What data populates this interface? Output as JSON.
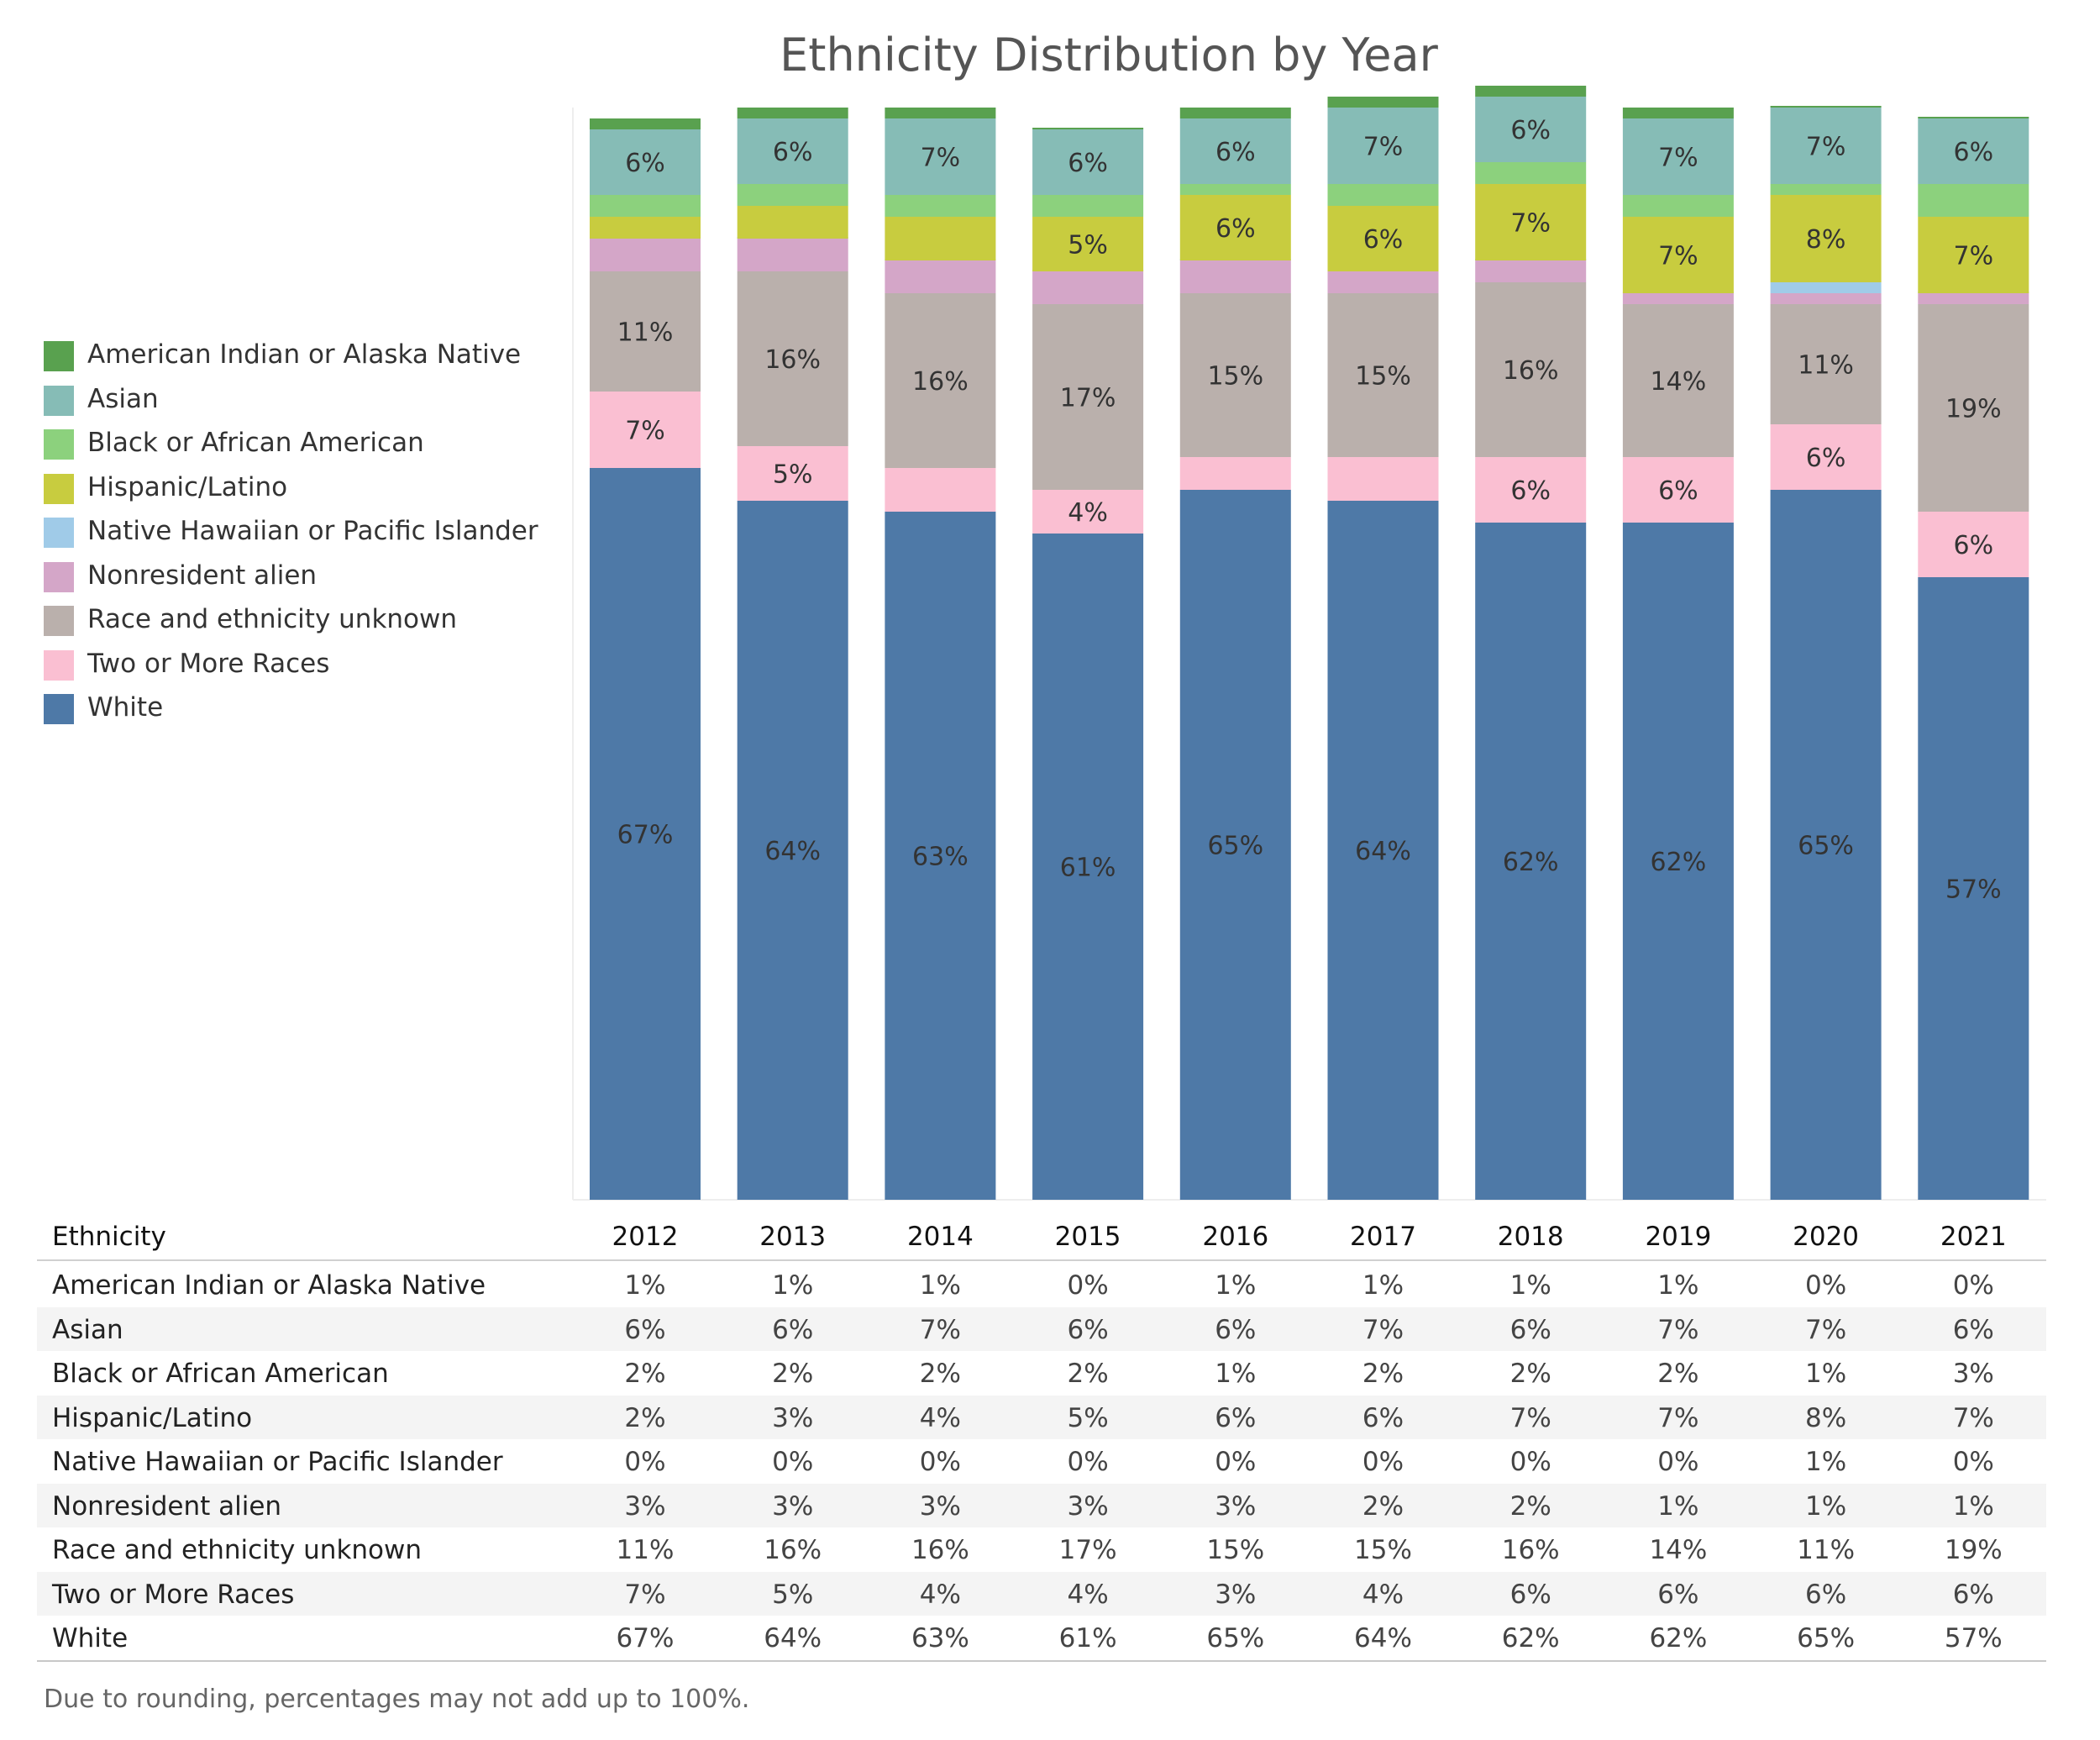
{
  "chart_data": {
    "type": "bar",
    "stacked": true,
    "title": "Ethnicity Distribution by Year",
    "categories": [
      "2012",
      "2013",
      "2014",
      "2015",
      "2016",
      "2017",
      "2018",
      "2019",
      "2020",
      "2021"
    ],
    "legend_position": "left",
    "grid": false,
    "series": [
      {
        "name": "White",
        "color": "#4e79a7",
        "values": [
          67,
          64,
          63,
          61,
          65,
          64,
          62,
          62,
          65,
          57
        ],
        "labels": [
          "67%",
          "64%",
          "63%",
          "61%",
          "65%",
          "64%",
          "62%",
          "62%",
          "65%",
          "57%"
        ]
      },
      {
        "name": "Two or More Races",
        "color": "#fabfd2",
        "values": [
          7,
          5,
          4,
          4,
          3,
          4,
          6,
          6,
          6,
          6
        ],
        "labels": [
          "7%",
          "5%",
          "",
          "4%",
          "",
          "",
          "6%",
          "6%",
          "6%",
          "6%"
        ]
      },
      {
        "name": "Race and ethnicity unknown",
        "color": "#bab0ac",
        "values": [
          11,
          16,
          16,
          17,
          15,
          15,
          16,
          14,
          11,
          19
        ],
        "labels": [
          "11%",
          "16%",
          "16%",
          "17%",
          "15%",
          "15%",
          "16%",
          "14%",
          "11%",
          "19%"
        ]
      },
      {
        "name": "Nonresident alien",
        "color": "#d4a6c8",
        "values": [
          3,
          3,
          3,
          3,
          3,
          2,
          2,
          1,
          1,
          1
        ],
        "labels": [
          "",
          "",
          "",
          "",
          "",
          "",
          "",
          "",
          "",
          ""
        ]
      },
      {
        "name": "Native Hawaiian or Pacific Islander",
        "color": "#a0cbe8",
        "values": [
          0,
          0,
          0,
          0,
          0,
          0,
          0,
          0,
          1,
          0
        ],
        "labels": [
          "",
          "",
          "",
          "",
          "",
          "",
          "",
          "",
          "",
          ""
        ]
      },
      {
        "name": "Hispanic/Latino",
        "color": "#c8cc3f",
        "values": [
          2,
          3,
          4,
          5,
          6,
          6,
          7,
          7,
          8,
          7
        ],
        "labels": [
          "",
          "",
          "",
          "5%",
          "6%",
          "6%",
          "7%",
          "7%",
          "8%",
          "7%"
        ]
      },
      {
        "name": "Black or African American",
        "color": "#8cd17d",
        "values": [
          2,
          2,
          2,
          2,
          1,
          2,
          2,
          2,
          1,
          3
        ],
        "labels": [
          "",
          "",
          "",
          "",
          "",
          "",
          "",
          "",
          "",
          ""
        ]
      },
      {
        "name": "Asian",
        "color": "#86bcb6",
        "values": [
          6,
          6,
          7,
          6,
          6,
          7,
          6,
          7,
          7,
          6
        ],
        "labels": [
          "6%",
          "6%",
          "7%",
          "6%",
          "6%",
          "7%",
          "6%",
          "7%",
          "7%",
          "6%"
        ]
      },
      {
        "name": "American Indian or Alaska Native",
        "color": "#59a14f",
        "values": [
          1,
          1,
          1,
          0,
          1,
          1,
          1,
          1,
          0,
          0
        ],
        "labels": [
          "",
          "",
          "",
          "",
          "",
          "",
          "",
          "",
          "",
          ""
        ]
      }
    ]
  },
  "legend": [
    {
      "label": "American Indian or Alaska Native",
      "color": "#59a14f"
    },
    {
      "label": "Asian",
      "color": "#86bcb6"
    },
    {
      "label": "Black or African American",
      "color": "#8cd17d"
    },
    {
      "label": "Hispanic/Latino",
      "color": "#c8cc3f"
    },
    {
      "label": "Native Hawaiian or Pacific Islander",
      "color": "#a0cbe8"
    },
    {
      "label": "Nonresident alien",
      "color": "#d4a6c8"
    },
    {
      "label": "Race and ethnicity unknown",
      "color": "#bab0ac"
    },
    {
      "label": "Two or More Races",
      "color": "#fabfd2"
    },
    {
      "label": "White",
      "color": "#4e79a7"
    }
  ],
  "table": {
    "header_label": "Ethnicity",
    "years": [
      "2012",
      "2013",
      "2014",
      "2015",
      "2016",
      "2017",
      "2018",
      "2019",
      "2020",
      "2021"
    ],
    "rows": [
      {
        "name": "American Indian or Alaska Native",
        "values": [
          "1%",
          "1%",
          "1%",
          "0%",
          "1%",
          "1%",
          "1%",
          "1%",
          "0%",
          "0%"
        ]
      },
      {
        "name": "Asian",
        "values": [
          "6%",
          "6%",
          "7%",
          "6%",
          "6%",
          "7%",
          "6%",
          "7%",
          "7%",
          "6%"
        ]
      },
      {
        "name": "Black or African American",
        "values": [
          "2%",
          "2%",
          "2%",
          "2%",
          "1%",
          "2%",
          "2%",
          "2%",
          "1%",
          "3%"
        ]
      },
      {
        "name": "Hispanic/Latino",
        "values": [
          "2%",
          "3%",
          "4%",
          "5%",
          "6%",
          "6%",
          "7%",
          "7%",
          "8%",
          "7%"
        ]
      },
      {
        "name": "Native Hawaiian or Pacific Islander",
        "values": [
          "0%",
          "0%",
          "0%",
          "0%",
          "0%",
          "0%",
          "0%",
          "0%",
          "1%",
          "0%"
        ]
      },
      {
        "name": "Nonresident alien",
        "values": [
          "3%",
          "3%",
          "3%",
          "3%",
          "3%",
          "2%",
          "2%",
          "1%",
          "1%",
          "1%"
        ]
      },
      {
        "name": "Race and ethnicity unknown",
        "values": [
          "11%",
          "16%",
          "16%",
          "17%",
          "15%",
          "15%",
          "16%",
          "14%",
          "11%",
          "19%"
        ]
      },
      {
        "name": "Two or More Races",
        "values": [
          "7%",
          "5%",
          "4%",
          "4%",
          "3%",
          "4%",
          "6%",
          "6%",
          "6%",
          "6%"
        ]
      },
      {
        "name": "White",
        "values": [
          "67%",
          "64%",
          "63%",
          "61%",
          "65%",
          "64%",
          "62%",
          "62%",
          "65%",
          "57%"
        ]
      }
    ]
  },
  "footnote": "Due to rounding, percentages may not add up to 100%."
}
